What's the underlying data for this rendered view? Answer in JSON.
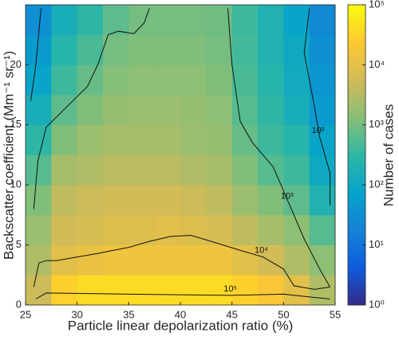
{
  "chart_data": {
    "type": "heatmap",
    "xlabel": "Particle linear depolarization ratio (%)",
    "ylabel": "Backscatter coefficient (Mm⁻¹ sr⁻¹)",
    "colorbar_label": "Number of cases",
    "colormap": "parula",
    "xlim": [
      25,
      55
    ],
    "ylim": [
      0,
      25
    ],
    "xticks": [
      25,
      30,
      35,
      40,
      45,
      50,
      55
    ],
    "yticks": [
      0,
      5,
      10,
      15,
      20
    ],
    "clim": [
      1,
      100000
    ],
    "clog": true,
    "cticks": [
      {
        "value": 1,
        "label": "10⁰"
      },
      {
        "value": 10,
        "label": "10¹"
      },
      {
        "value": 100,
        "label": "10²"
      },
      {
        "value": 1000,
        "label": "10³"
      },
      {
        "value": 10000,
        "label": "10⁴"
      },
      {
        "value": 100000,
        "label": "10⁵"
      }
    ],
    "x_edges": [
      25,
      27.5,
      30,
      32.5,
      35,
      37.5,
      40,
      42.5,
      45,
      47.5,
      50,
      52.5,
      55
    ],
    "y_edges": [
      0,
      2.5,
      5,
      7.5,
      10,
      12.5,
      15,
      17.5,
      20,
      22.5,
      25
    ],
    "z": [
      [
        5000,
        30000,
        40000,
        40000,
        40000,
        40000,
        40000,
        40000,
        30000,
        20000,
        10000,
        3000
      ],
      [
        3000,
        10000,
        12000,
        15000,
        15000,
        15000,
        15000,
        15000,
        10000,
        6000,
        3000,
        1500
      ],
      [
        2000,
        6000,
        7000,
        8000,
        8000,
        9000,
        8000,
        7000,
        4000,
        2500,
        1500,
        600
      ],
      [
        1200,
        4000,
        5000,
        6000,
        6000,
        6000,
        5000,
        4000,
        2000,
        1200,
        700,
        200
      ],
      [
        600,
        2500,
        3000,
        3500,
        3500,
        3500,
        3000,
        2500,
        1200,
        600,
        400,
        100
      ],
      [
        300,
        1200,
        2000,
        2500,
        2500,
        2500,
        2000,
        1800,
        800,
        400,
        250,
        80
      ],
      [
        150,
        700,
        1200,
        1800,
        2000,
        2000,
        1800,
        1500,
        600,
        300,
        150,
        50
      ],
      [
        80,
        400,
        800,
        1300,
        1500,
        1500,
        1500,
        1200,
        500,
        250,
        120,
        40
      ],
      [
        50,
        250,
        500,
        1000,
        1200,
        1200,
        1200,
        1000,
        450,
        200,
        100,
        30
      ],
      [
        30,
        150,
        300,
        700,
        1000,
        1000,
        1000,
        900,
        400,
        200,
        80,
        25
      ]
    ],
    "contours": [
      {
        "level": {
          "value": 100,
          "label": "10²"
        },
        "pieces": [
          {
            "x": [
              25.5,
              26,
              26.5
            ],
            "y": [
              17,
              20,
              24.7
            ]
          },
          {
            "x": [
              52.5,
              52,
              53,
              53.5,
              54.5,
              54.5
            ],
            "y": [
              24.7,
              21,
              16.5,
              14,
              11,
              8.3
            ]
          }
        ]
      },
      {
        "level": {
          "value": 1000,
          "label": "10³"
        },
        "pieces": [
          {
            "x": [
              25.8,
              26.2,
              27,
              29,
              31,
              32,
              33,
              34,
              35.5,
              36.5,
              37
            ],
            "y": [
              8,
              12,
              14.8,
              16.5,
              18.2,
              20,
              22.5,
              22.8,
              22.6,
              23.5,
              24.7
            ]
          },
          {
            "x": [
              44.6,
              45,
              45.8,
              47,
              49,
              50.5,
              52,
              53.5,
              54.5
            ],
            "y": [
              24.7,
              20,
              15.3,
              13.5,
              11.5,
              8.5,
              5.5,
              3,
              1.5
            ]
          }
        ]
      },
      {
        "level": {
          "value": 10000,
          "label": "10⁴"
        },
        "pieces": [
          {
            "x": [
              25.8,
              26.3,
              27,
              28,
              32,
              35,
              37,
              39,
              41,
              43,
              46,
              48,
              50,
              51,
              53,
              54.5
            ],
            "y": [
              1.5,
              3.5,
              3.7,
              3.7,
              4.3,
              4.8,
              5.3,
              5.7,
              5.8,
              5.3,
              4.5,
              4.0,
              3.0,
              1.6,
              1.3,
              1.5
            ]
          }
        ]
      },
      {
        "level": {
          "value": 100000,
          "label": "10⁵"
        },
        "pieces": [
          {
            "x": [
              26,
              27,
              35,
              45,
              50,
              54.5
            ],
            "y": [
              0.5,
              1.0,
              0.9,
              0.8,
              0.9,
              0.5
            ]
          }
        ]
      }
    ]
  }
}
